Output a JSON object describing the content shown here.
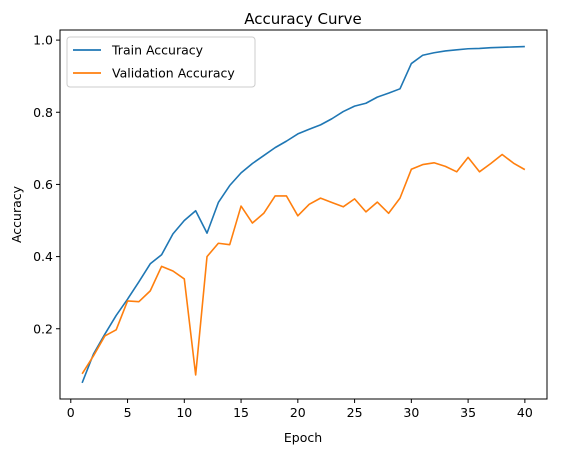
{
  "chart_data": {
    "type": "line",
    "title": "Accuracy Curve",
    "xlabel": "Epoch",
    "ylabel": "Accuracy",
    "xlim": [
      -0.95,
      41.95
    ],
    "ylim": [
      0.0053,
      1.028
    ],
    "xticks": [
      0,
      5,
      10,
      15,
      20,
      25,
      30,
      35,
      40
    ],
    "yticks": [
      0.2,
      0.4,
      0.6,
      0.8,
      1.0
    ],
    "ytick_labels": [
      "0.2",
      "0.4",
      "0.6",
      "0.8",
      "1.0"
    ],
    "grid": false,
    "legend_position": "top-left",
    "x": [
      1,
      2,
      3,
      4,
      5,
      6,
      7,
      8,
      9,
      10,
      11,
      12,
      13,
      14,
      15,
      16,
      17,
      18,
      19,
      20,
      21,
      22,
      23,
      24,
      25,
      26,
      27,
      28,
      29,
      30,
      31,
      32,
      33,
      34,
      35,
      36,
      37,
      38,
      39,
      40
    ],
    "series": [
      {
        "name": "Train Accuracy",
        "color": "#1f77b4",
        "values": [
          0.05,
          0.13,
          0.185,
          0.237,
          0.282,
          0.33,
          0.38,
          0.405,
          0.463,
          0.5,
          0.527,
          0.465,
          0.55,
          0.597,
          0.632,
          0.658,
          0.68,
          0.702,
          0.72,
          0.74,
          0.753,
          0.765,
          0.782,
          0.802,
          0.817,
          0.825,
          0.842,
          0.853,
          0.865,
          0.935,
          0.958,
          0.965,
          0.97,
          0.973,
          0.976,
          0.977,
          0.979,
          0.98,
          0.981,
          0.982
        ]
      },
      {
        "name": "Validation Accuracy",
        "color": "#ff7f0e",
        "values": [
          0.075,
          0.125,
          0.18,
          0.197,
          0.277,
          0.275,
          0.305,
          0.373,
          0.36,
          0.338,
          0.072,
          0.4,
          0.437,
          0.433,
          0.54,
          0.493,
          0.52,
          0.568,
          0.568,
          0.513,
          0.545,
          0.562,
          0.55,
          0.538,
          0.56,
          0.524,
          0.551,
          0.52,
          0.562,
          0.642,
          0.655,
          0.66,
          0.65,
          0.635,
          0.675,
          0.635,
          0.658,
          0.683,
          0.659,
          0.641
        ]
      }
    ]
  }
}
